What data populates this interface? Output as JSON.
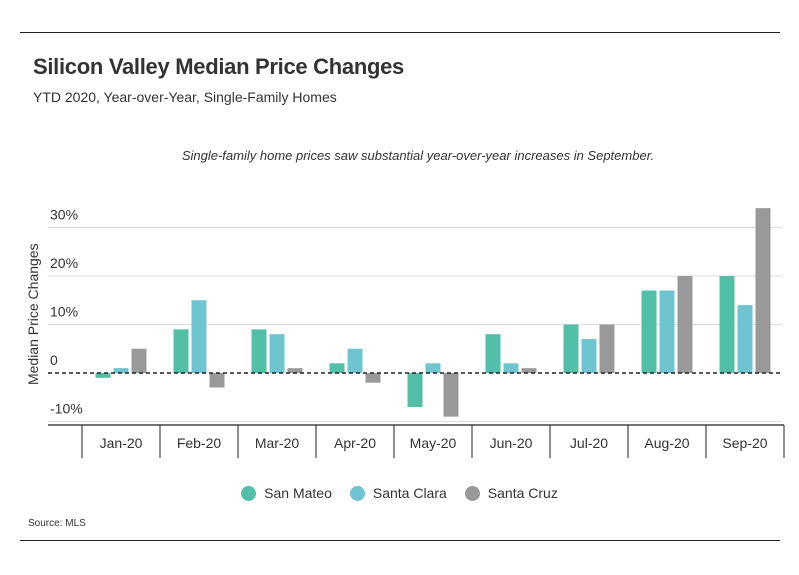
{
  "header": {
    "title": "Silicon Valley Median Price Changes",
    "subtitle": "YTD 2020, Year-over-Year, Single-Family Homes"
  },
  "annotation": "Single-family home prices saw substantial year-over-year increases in September.",
  "source": "Source:  MLS",
  "colors": {
    "San Mateo": "#52c0a8",
    "Santa Clara": "#6ec4d1",
    "Santa Cruz": "#999999"
  },
  "chart_data": {
    "type": "bar",
    "categories": [
      "Jan-20",
      "Feb-20",
      "Mar-20",
      "Apr-20",
      "May-20",
      "Jun-20",
      "Jul-20",
      "Aug-20",
      "Sep-20"
    ],
    "series": [
      {
        "name": "San Mateo",
        "values": [
          -1,
          9,
          9,
          2,
          -7,
          8,
          10,
          17,
          20
        ]
      },
      {
        "name": "Santa Clara",
        "values": [
          1,
          15,
          8,
          5,
          2,
          2,
          7,
          17,
          14
        ]
      },
      {
        "name": "Santa Cruz",
        "values": [
          5,
          -3,
          1,
          -2,
          -9,
          1,
          10,
          20,
          34
        ]
      }
    ],
    "ylabel": "Median Price Changes",
    "xlabel": "",
    "ylim": [
      -12,
      35
    ],
    "yticks": [
      30,
      20,
      10,
      0,
      -10
    ],
    "ytick_labels": [
      "30%",
      "20%",
      "10%",
      "0",
      "-10%"
    ],
    "grid": true,
    "legend": "bottom-center"
  }
}
